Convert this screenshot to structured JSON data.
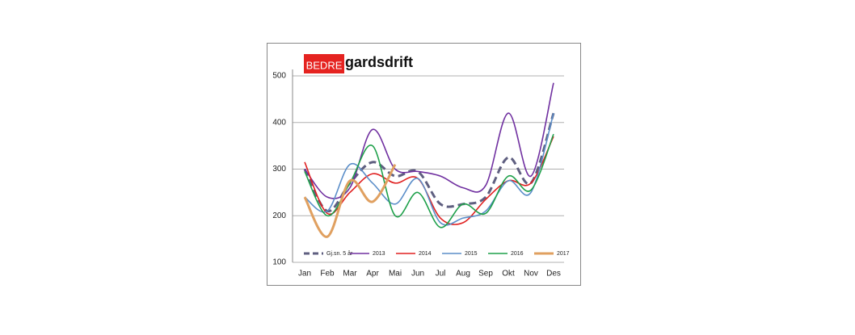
{
  "logo": {
    "badge": "BEDRE",
    "text": "gardsdrift"
  },
  "chart_data": {
    "type": "line",
    "categories": [
      "Jan",
      "Feb",
      "Mar",
      "Apr",
      "Mai",
      "Jun",
      "Jul",
      "Aug",
      "Sep",
      "Okt",
      "Nov",
      "Des"
    ],
    "ylim": [
      100,
      500
    ],
    "yticks": [
      100,
      200,
      300,
      400,
      500
    ],
    "grid": true,
    "smooth": true,
    "legend": "bottom",
    "series": [
      {
        "name": "Gj.sn. 5 år",
        "color": "#5f5f80",
        "dashed": true,
        "values": [
          300,
          210,
          270,
          315,
          285,
          295,
          225,
          225,
          240,
          325,
          270,
          420
        ]
      },
      {
        "name": "2013",
        "color": "#7030a0",
        "values": [
          300,
          240,
          260,
          385,
          300,
          295,
          285,
          260,
          265,
          420,
          285,
          485
        ]
      },
      {
        "name": "2014",
        "color": "#e02020",
        "values": [
          315,
          205,
          250,
          290,
          270,
          280,
          195,
          185,
          235,
          275,
          270,
          370
        ]
      },
      {
        "name": "2015",
        "color": "#5b8ec9",
        "values": [
          240,
          210,
          310,
          270,
          225,
          280,
          185,
          195,
          210,
          275,
          250,
          420
        ]
      },
      {
        "name": "2016",
        "color": "#1ea04a",
        "values": [
          295,
          200,
          270,
          350,
          200,
          250,
          175,
          225,
          205,
          285,
          255,
          375
        ]
      },
      {
        "name": "2017",
        "color": "#e0a060",
        "values": [
          240,
          155,
          275,
          230,
          310,
          null,
          null,
          null,
          null,
          null,
          null,
          null
        ]
      }
    ]
  }
}
